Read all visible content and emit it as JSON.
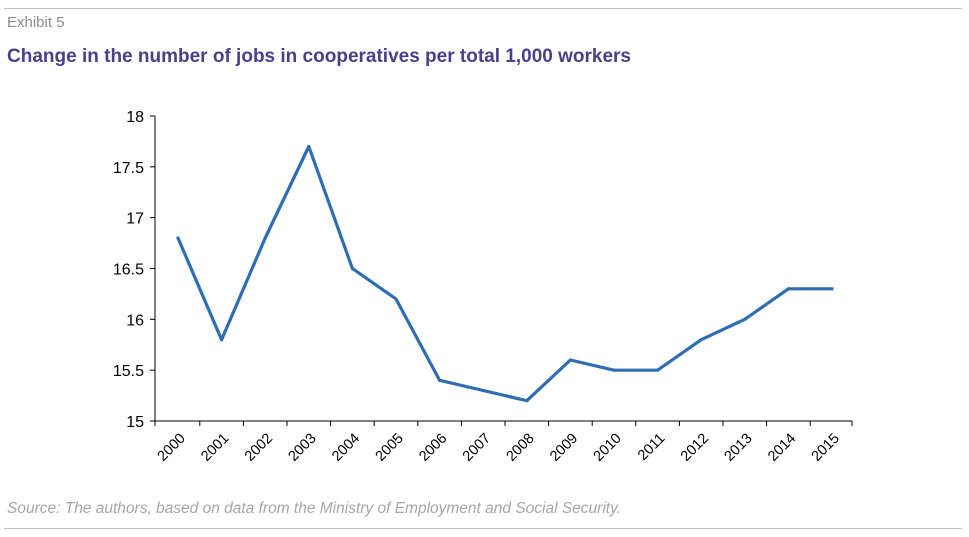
{
  "header": {
    "exhibit_label": "Exhibit 5",
    "title": "Change in the number of jobs in cooperatives per total 1,000 workers"
  },
  "footer": {
    "source": "Source: The authors, based on data from the Ministry of Employment and Social Security."
  },
  "chart_data": {
    "type": "line",
    "title": "Change in the number of jobs in cooperatives per total 1,000 workers",
    "xlabel": "",
    "ylabel": "",
    "categories": [
      "2000",
      "2001",
      "2002",
      "2003",
      "2004",
      "2005",
      "2006",
      "2007",
      "2008",
      "2009",
      "2010",
      "2011",
      "2012",
      "2013",
      "2014",
      "2015"
    ],
    "series": [
      {
        "values": [
          16.8,
          15.8,
          16.8,
          17.7,
          16.5,
          16.2,
          15.4,
          15.3,
          15.2,
          15.6,
          15.5,
          15.5,
          15.8,
          16.0,
          16.3,
          16.3
        ],
        "color": "#2e6db4"
      }
    ],
    "ylim": [
      15,
      18
    ],
    "yticks": [
      15,
      15.5,
      16,
      16.5,
      17,
      17.5,
      18
    ],
    "ytick_labels": [
      "15",
      "15.5",
      "16",
      "16.5",
      "17",
      "17.5",
      "18"
    ],
    "grid": false,
    "legend": "none"
  }
}
